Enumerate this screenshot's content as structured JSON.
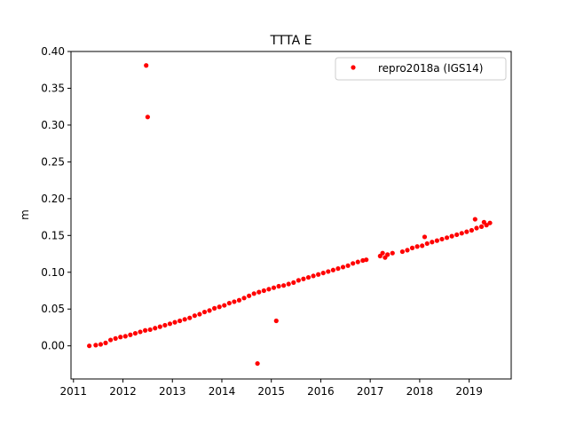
{
  "chart_data": {
    "type": "scatter",
    "title": "TTTA E",
    "xlabel": "",
    "ylabel": "m",
    "xlim": [
      2010.95,
      2019.85
    ],
    "ylim": [
      -0.045,
      0.4
    ],
    "x_ticks": [
      2011,
      2012,
      2013,
      2014,
      2015,
      2016,
      2017,
      2018,
      2019
    ],
    "x_tick_labels": [
      "2011",
      "2012",
      "2013",
      "2014",
      "2015",
      "2016",
      "2017",
      "2018",
      "2019"
    ],
    "y_ticks": [
      0.0,
      0.05,
      0.1,
      0.15,
      0.2,
      0.25,
      0.3,
      0.35,
      0.4
    ],
    "y_tick_labels": [
      "0.00",
      "0.05",
      "0.10",
      "0.15",
      "0.20",
      "0.25",
      "0.30",
      "0.35",
      "0.40"
    ],
    "grid": false,
    "legend_position": "top-right",
    "series": [
      {
        "name": "repro2018a (IGS14)",
        "color": "#ff0000",
        "marker": "circle",
        "points": [
          [
            2011.32,
            0.0
          ],
          [
            2011.45,
            0.001
          ],
          [
            2011.55,
            0.002
          ],
          [
            2011.65,
            0.004
          ],
          [
            2011.75,
            0.008
          ],
          [
            2011.85,
            0.01
          ],
          [
            2011.95,
            0.012
          ],
          [
            2012.05,
            0.013
          ],
          [
            2012.15,
            0.015
          ],
          [
            2012.25,
            0.017
          ],
          [
            2012.35,
            0.019
          ],
          [
            2012.45,
            0.021
          ],
          [
            2012.55,
            0.022
          ],
          [
            2012.65,
            0.024
          ],
          [
            2012.75,
            0.026
          ],
          [
            2012.85,
            0.028
          ],
          [
            2012.95,
            0.03
          ],
          [
            2013.05,
            0.032
          ],
          [
            2013.15,
            0.034
          ],
          [
            2013.25,
            0.036
          ],
          [
            2013.35,
            0.038
          ],
          [
            2013.45,
            0.041
          ],
          [
            2013.55,
            0.043
          ],
          [
            2013.65,
            0.046
          ],
          [
            2013.75,
            0.048
          ],
          [
            2013.85,
            0.051
          ],
          [
            2013.95,
            0.053
          ],
          [
            2014.05,
            0.055
          ],
          [
            2014.15,
            0.058
          ],
          [
            2014.25,
            0.06
          ],
          [
            2014.35,
            0.062
          ],
          [
            2014.45,
            0.065
          ],
          [
            2014.55,
            0.068
          ],
          [
            2014.65,
            0.071
          ],
          [
            2014.75,
            0.073
          ],
          [
            2014.85,
            0.075
          ],
          [
            2014.95,
            0.077
          ],
          [
            2015.05,
            0.079
          ],
          [
            2015.15,
            0.081
          ],
          [
            2015.25,
            0.082
          ],
          [
            2015.35,
            0.084
          ],
          [
            2015.45,
            0.086
          ],
          [
            2015.55,
            0.089
          ],
          [
            2015.65,
            0.091
          ],
          [
            2015.75,
            0.093
          ],
          [
            2015.85,
            0.095
          ],
          [
            2015.95,
            0.097
          ],
          [
            2016.05,
            0.099
          ],
          [
            2016.15,
            0.101
          ],
          [
            2016.25,
            0.103
          ],
          [
            2016.35,
            0.105
          ],
          [
            2016.45,
            0.107
          ],
          [
            2016.55,
            0.109
          ],
          [
            2016.65,
            0.112
          ],
          [
            2016.75,
            0.114
          ],
          [
            2016.85,
            0.116
          ],
          [
            2016.92,
            0.117
          ],
          [
            2017.2,
            0.122
          ],
          [
            2017.25,
            0.126
          ],
          [
            2017.3,
            0.12
          ],
          [
            2017.35,
            0.124
          ],
          [
            2017.45,
            0.126
          ],
          [
            2017.65,
            0.128
          ],
          [
            2017.75,
            0.13
          ],
          [
            2017.85,
            0.133
          ],
          [
            2017.95,
            0.135
          ],
          [
            2018.05,
            0.136
          ],
          [
            2018.1,
            0.148
          ],
          [
            2018.15,
            0.139
          ],
          [
            2018.25,
            0.141
          ],
          [
            2018.35,
            0.143
          ],
          [
            2018.45,
            0.145
          ],
          [
            2018.55,
            0.147
          ],
          [
            2018.65,
            0.149
          ],
          [
            2018.75,
            0.151
          ],
          [
            2018.85,
            0.153
          ],
          [
            2018.95,
            0.155
          ],
          [
            2019.05,
            0.157
          ],
          [
            2019.12,
            0.172
          ],
          [
            2019.15,
            0.16
          ],
          [
            2019.25,
            0.162
          ],
          [
            2019.3,
            0.168
          ],
          [
            2019.35,
            0.164
          ],
          [
            2019.42,
            0.167
          ],
          [
            2012.47,
            0.381
          ],
          [
            2012.5,
            0.311
          ],
          [
            2014.72,
            -0.024
          ],
          [
            2015.1,
            0.034
          ]
        ]
      }
    ]
  }
}
